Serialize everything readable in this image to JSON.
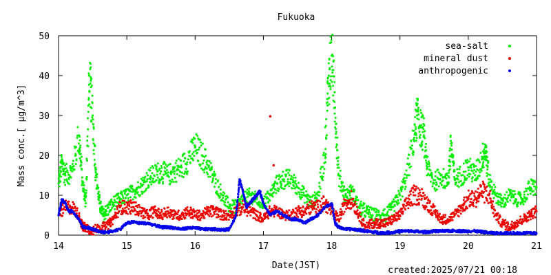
{
  "chart_data": {
    "type": "scatter",
    "title": "Fukuoka",
    "xlabel": "Date(JST)",
    "ylabel": "Mass conc.[ μg/m^3]",
    "footer": "created:2025/07/21 00:18",
    "xlim": [
      14,
      21
    ],
    "ylim": [
      0,
      50
    ],
    "xticks": [
      14,
      15,
      16,
      17,
      18,
      19,
      20,
      21
    ],
    "yticks": [
      0,
      10,
      20,
      30,
      40,
      50
    ],
    "legend_position": "top-right",
    "grid": false,
    "series": [
      {
        "name": "sea-salt",
        "color": "#00ee00",
        "points": [
          [
            14.0,
            13
          ],
          [
            14.05,
            18
          ],
          [
            14.1,
            15
          ],
          [
            14.2,
            16
          ],
          [
            14.3,
            25
          ],
          [
            14.35,
            13
          ],
          [
            14.4,
            8
          ],
          [
            14.45,
            40
          ],
          [
            14.5,
            30
          ],
          [
            14.55,
            15
          ],
          [
            14.6,
            8
          ],
          [
            14.65,
            5
          ],
          [
            14.7,
            6
          ],
          [
            14.8,
            8
          ],
          [
            14.9,
            9
          ],
          [
            15.0,
            10
          ],
          [
            15.1,
            11
          ],
          [
            15.2,
            12
          ],
          [
            15.3,
            14
          ],
          [
            15.4,
            15
          ],
          [
            15.5,
            16
          ],
          [
            15.6,
            15
          ],
          [
            15.7,
            16
          ],
          [
            15.8,
            17
          ],
          [
            15.9,
            19
          ],
          [
            16.0,
            22
          ],
          [
            16.1,
            20
          ],
          [
            16.2,
            17
          ],
          [
            16.3,
            13
          ],
          [
            16.4,
            10
          ],
          [
            16.5,
            7
          ],
          [
            16.6,
            7
          ],
          [
            16.7,
            9
          ],
          [
            16.8,
            10
          ],
          [
            16.9,
            9
          ],
          [
            17.0,
            8
          ],
          [
            17.1,
            10
          ],
          [
            17.2,
            13
          ],
          [
            17.3,
            14
          ],
          [
            17.4,
            14
          ],
          [
            17.5,
            12
          ],
          [
            17.6,
            10
          ],
          [
            17.7,
            8
          ],
          [
            17.8,
            10
          ],
          [
            17.9,
            20
          ],
          [
            17.95,
            38
          ],
          [
            18.0,
            45
          ],
          [
            18.05,
            32
          ],
          [
            18.1,
            15
          ],
          [
            18.2,
            10
          ],
          [
            18.3,
            11
          ],
          [
            18.4,
            7
          ],
          [
            18.5,
            6
          ],
          [
            18.6,
            5
          ],
          [
            18.7,
            5
          ],
          [
            18.8,
            5
          ],
          [
            18.9,
            7
          ],
          [
            19.0,
            10
          ],
          [
            19.1,
            15
          ],
          [
            19.2,
            24
          ],
          [
            19.25,
            30
          ],
          [
            19.3,
            27
          ],
          [
            19.35,
            25
          ],
          [
            19.4,
            17
          ],
          [
            19.5,
            13
          ],
          [
            19.6,
            15
          ],
          [
            19.7,
            13
          ],
          [
            19.75,
            23
          ],
          [
            19.8,
            14
          ],
          [
            19.9,
            15
          ],
          [
            20.0,
            17
          ],
          [
            20.1,
            15
          ],
          [
            20.2,
            19
          ],
          [
            20.25,
            22
          ],
          [
            20.3,
            14
          ],
          [
            20.4,
            10
          ],
          [
            20.5,
            8
          ],
          [
            20.6,
            10
          ],
          [
            20.7,
            9
          ],
          [
            20.8,
            9
          ],
          [
            20.9,
            12
          ],
          [
            21.0,
            12
          ]
        ]
      },
      {
        "name": "mineral dust",
        "color": "#ee0000",
        "points": [
          [
            14.0,
            5
          ],
          [
            14.1,
            7
          ],
          [
            14.2,
            7
          ],
          [
            14.3,
            5
          ],
          [
            14.35,
            2
          ],
          [
            14.4,
            2
          ],
          [
            14.5,
            1
          ],
          [
            14.6,
            2
          ],
          [
            14.7,
            2
          ],
          [
            14.8,
            4
          ],
          [
            14.9,
            7
          ],
          [
            15.0,
            7
          ],
          [
            15.1,
            7
          ],
          [
            15.2,
            6
          ],
          [
            15.3,
            5
          ],
          [
            15.4,
            6
          ],
          [
            15.5,
            5
          ],
          [
            15.6,
            6
          ],
          [
            15.7,
            5
          ],
          [
            15.8,
            5
          ],
          [
            15.9,
            6
          ],
          [
            16.0,
            5
          ],
          [
            16.1,
            5
          ],
          [
            16.2,
            6
          ],
          [
            16.3,
            6
          ],
          [
            16.4,
            5
          ],
          [
            16.5,
            5
          ],
          [
            16.6,
            6
          ],
          [
            16.7,
            7
          ],
          [
            16.8,
            6
          ],
          [
            16.9,
            5
          ],
          [
            17.0,
            4
          ],
          [
            17.1,
            6
          ],
          [
            17.2,
            6
          ],
          [
            17.3,
            5
          ],
          [
            17.4,
            5
          ],
          [
            17.5,
            6
          ],
          [
            17.6,
            6
          ],
          [
            17.7,
            7
          ],
          [
            17.8,
            7
          ],
          [
            17.9,
            8
          ],
          [
            18.0,
            6
          ],
          [
            18.1,
            4
          ],
          [
            18.2,
            8
          ],
          [
            18.3,
            9
          ],
          [
            18.4,
            5
          ],
          [
            18.5,
            2
          ],
          [
            18.6,
            3
          ],
          [
            18.7,
            3
          ],
          [
            18.8,
            3
          ],
          [
            18.9,
            4
          ],
          [
            19.0,
            5
          ],
          [
            19.1,
            8
          ],
          [
            19.2,
            10
          ],
          [
            19.3,
            10
          ],
          [
            19.4,
            8
          ],
          [
            19.5,
            6
          ],
          [
            19.6,
            4
          ],
          [
            19.7,
            4
          ],
          [
            19.8,
            5
          ],
          [
            19.9,
            7
          ],
          [
            20.0,
            9
          ],
          [
            20.1,
            9
          ],
          [
            20.2,
            11
          ],
          [
            20.3,
            10
          ],
          [
            20.4,
            5
          ],
          [
            20.5,
            3
          ],
          [
            20.6,
            2
          ],
          [
            20.7,
            3
          ],
          [
            20.8,
            4
          ],
          [
            20.9,
            5
          ],
          [
            21.0,
            6
          ]
        ]
      },
      {
        "name": "anthropogenic",
        "color": "#0000ee",
        "points": [
          [
            14.0,
            5
          ],
          [
            14.05,
            9
          ],
          [
            14.1,
            8
          ],
          [
            14.15,
            6
          ],
          [
            14.2,
            6
          ],
          [
            14.3,
            4
          ],
          [
            14.35,
            2
          ],
          [
            14.4,
            2
          ],
          [
            14.5,
            1.5
          ],
          [
            14.6,
            0.8
          ],
          [
            14.7,
            0.7
          ],
          [
            14.8,
            1
          ],
          [
            14.9,
            1.5
          ],
          [
            15.0,
            3
          ],
          [
            15.1,
            3.3
          ],
          [
            15.2,
            3
          ],
          [
            15.3,
            3
          ],
          [
            15.4,
            2.5
          ],
          [
            15.5,
            2
          ],
          [
            15.6,
            2
          ],
          [
            15.7,
            1.8
          ],
          [
            15.8,
            1.5
          ],
          [
            15.9,
            1.8
          ],
          [
            16.0,
            1.8
          ],
          [
            16.1,
            1.5
          ],
          [
            16.2,
            1.5
          ],
          [
            16.3,
            1.5
          ],
          [
            16.4,
            1.3
          ],
          [
            16.5,
            1.5
          ],
          [
            16.6,
            5
          ],
          [
            16.65,
            14
          ],
          [
            16.7,
            11
          ],
          [
            16.75,
            7
          ],
          [
            16.8,
            8
          ],
          [
            16.85,
            9
          ],
          [
            16.9,
            10
          ],
          [
            16.95,
            11
          ],
          [
            17.0,
            8
          ],
          [
            17.1,
            5
          ],
          [
            17.2,
            6
          ],
          [
            17.3,
            5
          ],
          [
            17.4,
            4
          ],
          [
            17.5,
            4
          ],
          [
            17.6,
            3
          ],
          [
            17.7,
            4
          ],
          [
            17.8,
            5
          ],
          [
            17.9,
            7
          ],
          [
            18.0,
            8
          ],
          [
            18.05,
            3
          ],
          [
            18.1,
            2
          ],
          [
            18.2,
            1.5
          ],
          [
            18.3,
            1.5
          ],
          [
            18.4,
            1.3
          ],
          [
            18.5,
            1
          ],
          [
            18.6,
            0.8
          ],
          [
            18.7,
            0.6
          ],
          [
            18.8,
            0.6
          ],
          [
            18.9,
            0.7
          ],
          [
            19.0,
            1
          ],
          [
            19.1,
            1
          ],
          [
            19.2,
            1
          ],
          [
            19.3,
            0.8
          ],
          [
            19.4,
            0.8
          ],
          [
            19.5,
            1
          ],
          [
            19.6,
            1
          ],
          [
            19.7,
            1
          ],
          [
            19.8,
            1.1
          ],
          [
            19.9,
            1
          ],
          [
            20.0,
            1
          ],
          [
            20.1,
            1
          ],
          [
            20.2,
            0.8
          ],
          [
            20.3,
            0.6
          ],
          [
            20.4,
            0.5
          ],
          [
            20.5,
            0.5
          ],
          [
            20.6,
            0.5
          ],
          [
            20.7,
            0.5
          ],
          [
            20.8,
            0.5
          ],
          [
            20.9,
            0.5
          ],
          [
            21.0,
            0.5
          ]
        ]
      }
    ],
    "outliers": [
      {
        "series": "mineral dust",
        "x": 17.1,
        "y": 29.8
      },
      {
        "series": "mineral dust",
        "x": 17.15,
        "y": 17.5
      }
    ]
  }
}
